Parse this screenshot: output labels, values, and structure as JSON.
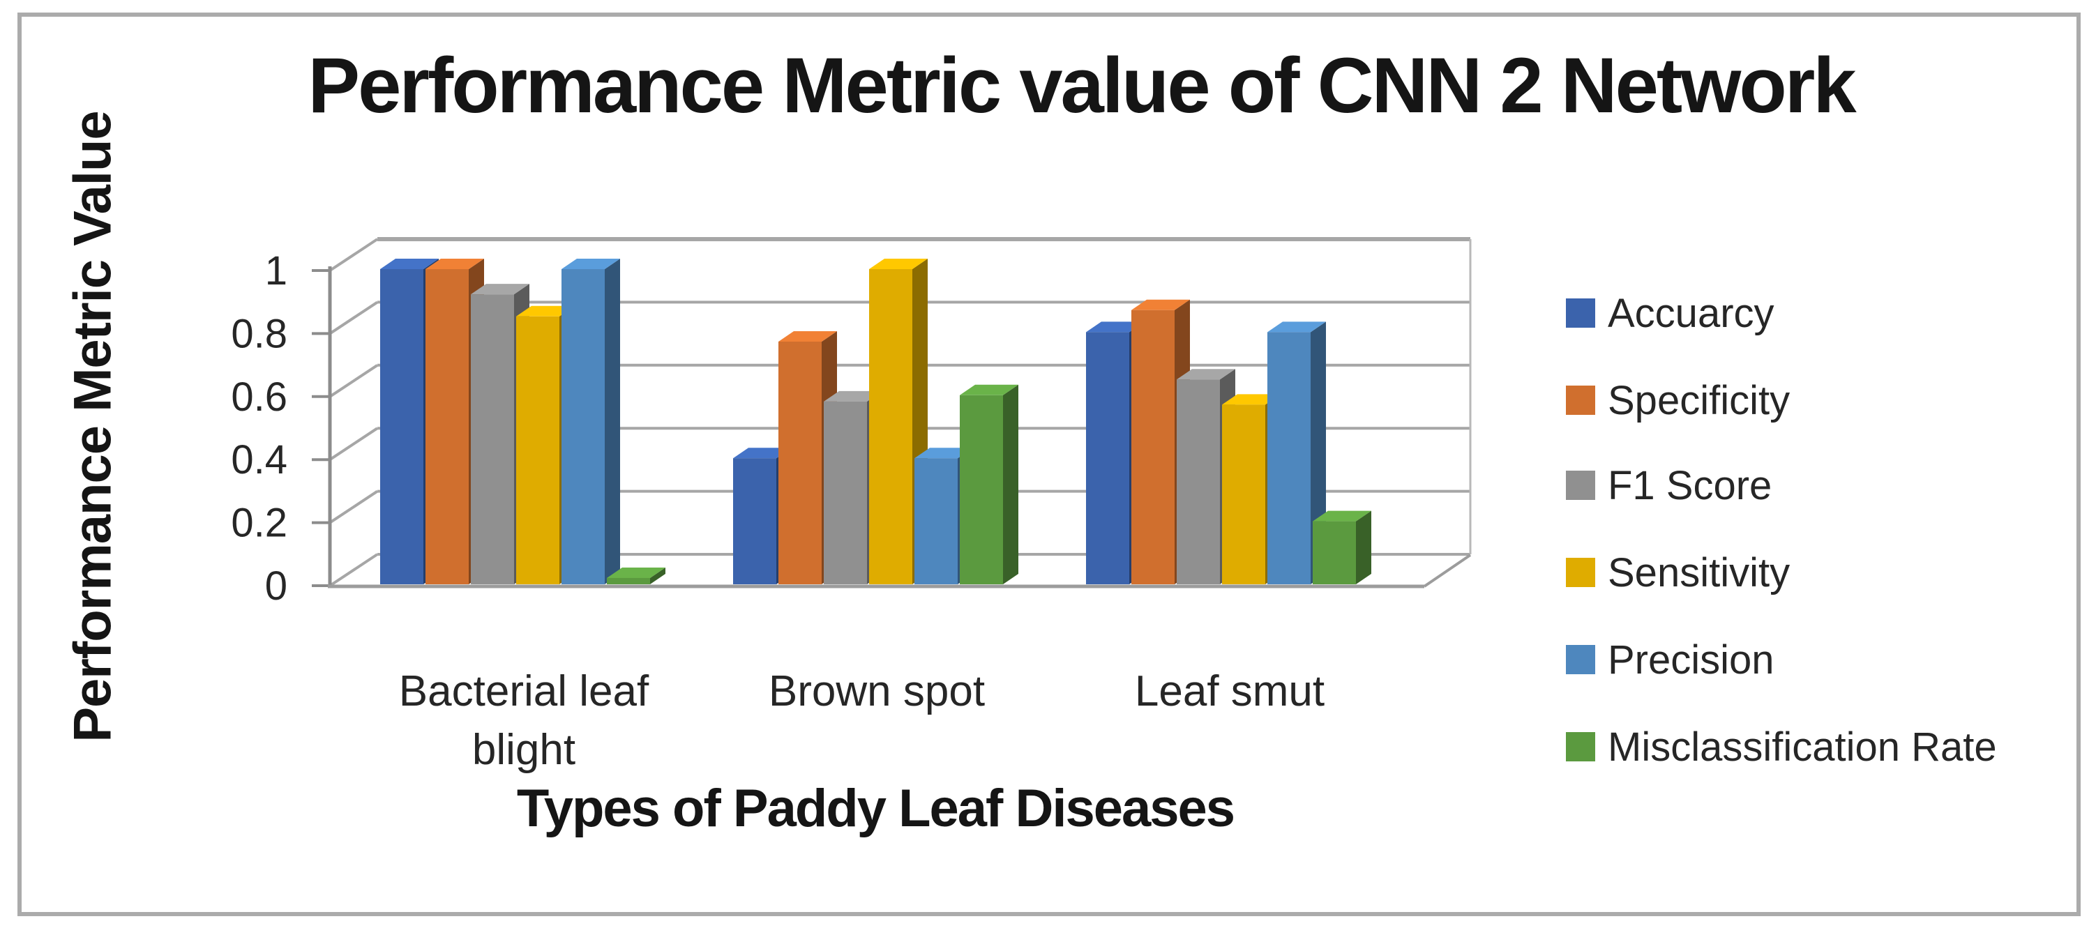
{
  "figure": {
    "border_color": "#ababab",
    "background": "#ffffff"
  },
  "chart_data": {
    "type": "bar",
    "variant": "3d-clustered-column",
    "title": "Performance Metric value of CNN 2 Network",
    "xlabel": "Types of Paddy Leaf Diseases",
    "ylabel": "Performance Metric Value",
    "ylim": [
      0,
      1
    ],
    "ytick_step": 0.2,
    "ytick_labels": [
      "0",
      "0.2",
      "0.4",
      "0.6",
      "0.8",
      "1"
    ],
    "grid": true,
    "legend_position": "right",
    "categories": [
      "Bacterial leaf blight",
      "Brown spot",
      "Leaf smut"
    ],
    "series": [
      {
        "name": "Accuarcy",
        "color": "#3b63ac",
        "values": [
          1.0,
          0.4,
          0.8
        ]
      },
      {
        "name": "Specificity",
        "color": "#d06f2e",
        "values": [
          1.0,
          0.77,
          0.87
        ]
      },
      {
        "name": "F1 Score",
        "color": "#909090",
        "values": [
          0.92,
          0.58,
          0.65
        ]
      },
      {
        "name": "Sensitivity",
        "color": "#dfac00",
        "values": [
          0.85,
          1.0,
          0.57
        ]
      },
      {
        "name": "Precision",
        "color": "#4e87be",
        "values": [
          1.0,
          0.4,
          0.8
        ]
      },
      {
        "name": "Misclassification Rate",
        "color": "#5b9a3f",
        "values": [
          0.02,
          0.6,
          0.2
        ]
      }
    ],
    "gridline_color": "#a6a6a6",
    "axis_color": "#8c8c8c"
  }
}
